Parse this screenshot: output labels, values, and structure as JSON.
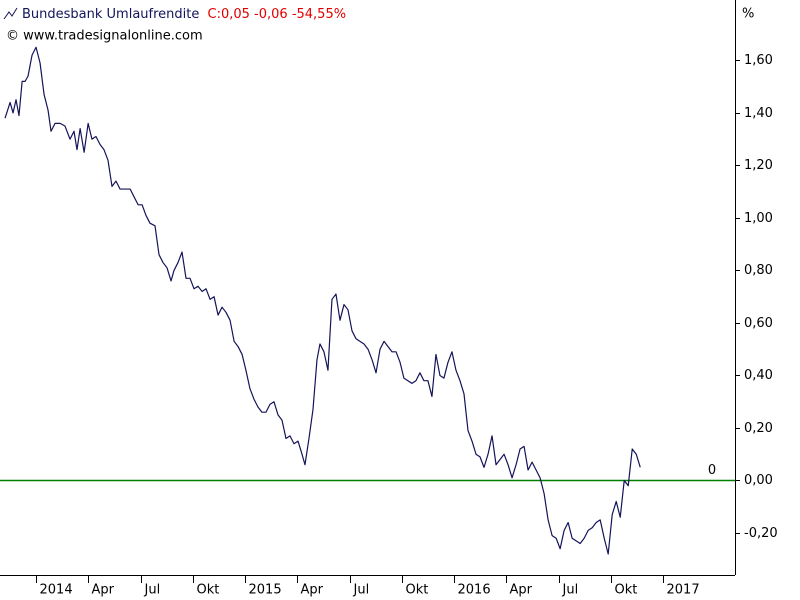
{
  "header": {
    "series_quote": "C:0,05 -0,06 -54,55%",
    "copyright": "© www.tradesignalonline.com",
    "unit": "%"
  },
  "chart_data": {
    "type": "line",
    "x": [
      -1.78,
      -1.49,
      -1.32,
      -1.15,
      -0.98,
      -0.8,
      -0.63,
      -0.46,
      -0.23,
      0,
      0.23,
      0.46,
      0.69,
      0.86,
      1.09,
      1.38,
      1.66,
      1.95,
      2.18,
      2.35,
      2.53,
      2.76,
      2.99,
      3.21,
      3.44,
      3.67,
      3.9,
      4.13,
      4.36,
      4.59,
      4.82,
      5.17,
      5.4,
      5.63,
      5.86,
      6.09,
      6.31,
      6.54,
      6.83,
      7.06,
      7.29,
      7.52,
      7.75,
      7.92,
      8.15,
      8.38,
      8.61,
      8.84,
      9.07,
      9.3,
      9.53,
      9.76,
      9.99,
      10.22,
      10.45,
      10.68,
      10.91,
      11.14,
      11.37,
      11.6,
      11.83,
      12.05,
      12.28,
      12.51,
      12.74,
      12.97,
      13.2,
      13.43,
      13.66,
      13.89,
      14.12,
      14.35,
      14.58,
      14.81,
      15.04,
      15.27,
      15.44,
      15.67,
      15.9,
      16.13,
      16.3,
      16.53,
      16.76,
      16.99,
      17.22,
      17.45,
      17.68,
      17.91,
      18.14,
      18.37,
      18.6,
      18.83,
      19.06,
      19.29,
      19.52,
      19.75,
      19.98,
      20.21,
      20.44,
      20.67,
      20.9,
      21.12,
      21.35,
      21.58,
      21.81,
      22.04,
      22.27,
      22.5,
      22.73,
      22.96,
      23.19,
      23.42,
      23.65,
      23.88,
      24.11,
      24.34,
      24.57,
      24.8,
      25.03,
      25.26,
      25.49,
      25.72,
      25.95,
      26.18,
      26.41,
      26.64,
      26.87,
      27.1,
      27.33,
      27.56,
      27.79,
      28.02,
      28.25,
      28.48,
      28.71,
      28.94,
      29.17,
      29.4,
      29.63,
      29.86,
      30.09,
      30.32,
      30.55,
      30.78,
      31.01,
      31.24,
      31.47,
      31.7,
      31.93,
      32.16,
      32.39,
      32.62,
      32.85,
      33.08,
      33.31,
      33.54,
      33.77,
      34.0,
      34.23,
      34.46,
      34.69
    ],
    "series": [
      {
        "name": "Bundesbank Umlaufrendite",
        "color": "#14145a",
        "values": [
          1.38,
          1.44,
          1.4,
          1.45,
          1.39,
          1.52,
          1.52,
          1.54,
          1.62,
          1.65,
          1.59,
          1.47,
          1.41,
          1.33,
          1.36,
          1.36,
          1.35,
          1.3,
          1.33,
          1.26,
          1.34,
          1.25,
          1.36,
          1.3,
          1.31,
          1.28,
          1.26,
          1.22,
          1.12,
          1.14,
          1.11,
          1.11,
          1.11,
          1.08,
          1.05,
          1.05,
          1.01,
          0.98,
          0.97,
          0.86,
          0.83,
          0.81,
          0.76,
          0.8,
          0.83,
          0.87,
          0.77,
          0.77,
          0.73,
          0.74,
          0.72,
          0.73,
          0.69,
          0.7,
          0.63,
          0.66,
          0.64,
          0.61,
          0.53,
          0.51,
          0.48,
          0.42,
          0.35,
          0.31,
          0.28,
          0.26,
          0.26,
          0.29,
          0.3,
          0.25,
          0.23,
          0.16,
          0.17,
          0.14,
          0.15,
          0.1,
          0.06,
          0.16,
          0.27,
          0.46,
          0.52,
          0.49,
          0.42,
          0.69,
          0.71,
          0.61,
          0.67,
          0.65,
          0.57,
          0.54,
          0.53,
          0.52,
          0.5,
          0.46,
          0.41,
          0.5,
          0.53,
          0.51,
          0.49,
          0.49,
          0.45,
          0.39,
          0.38,
          0.37,
          0.38,
          0.41,
          0.38,
          0.38,
          0.32,
          0.48,
          0.4,
          0.39,
          0.45,
          0.49,
          0.42,
          0.38,
          0.33,
          0.19,
          0.15,
          0.1,
          0.09,
          0.05,
          0.1,
          0.17,
          0.06,
          0.08,
          0.1,
          0.06,
          0.01,
          0.06,
          0.12,
          0.13,
          0.04,
          0.07,
          0.04,
          0.01,
          -0.05,
          -0.15,
          -0.21,
          -0.22,
          -0.26,
          -0.19,
          -0.16,
          -0.22,
          -0.23,
          -0.24,
          -0.22,
          -0.19,
          -0.18,
          -0.16,
          -0.15,
          -0.22,
          -0.28,
          -0.13,
          -0.08,
          -0.14,
          0.0,
          -0.02,
          0.12,
          0.1,
          0.05
        ]
      }
    ],
    "xlim": [
      -2.07,
      40.13
    ],
    "xticks": [
      {
        "value": 0,
        "label": "2014"
      },
      {
        "value": 3,
        "label": "Apr"
      },
      {
        "value": 6,
        "label": "Jul"
      },
      {
        "value": 9,
        "label": "Okt"
      },
      {
        "value": 12,
        "label": "2015"
      },
      {
        "value": 15,
        "label": "Apr"
      },
      {
        "value": 18,
        "label": "Jul"
      },
      {
        "value": 21,
        "label": "Okt"
      },
      {
        "value": 24,
        "label": "2016"
      },
      {
        "value": 27,
        "label": "Apr"
      },
      {
        "value": 30,
        "label": "Jul"
      },
      {
        "value": 33,
        "label": "Okt"
      },
      {
        "value": 36,
        "label": "2017"
      }
    ],
    "ylim": [
      -0.36,
      1.83
    ],
    "yticks": [
      {
        "value": -0.2,
        "label": "-0,20"
      },
      {
        "value": 0,
        "label": "0,00"
      },
      {
        "value": 0.2,
        "label": "0,20"
      },
      {
        "value": 0.4,
        "label": "0,40"
      },
      {
        "value": 0.6,
        "label": "0,60"
      },
      {
        "value": 0.8,
        "label": "0,80"
      },
      {
        "value": 1.0,
        "label": "1,00"
      },
      {
        "value": 1.2,
        "label": "1,20"
      },
      {
        "value": 1.4,
        "label": "1,40"
      },
      {
        "value": 1.6,
        "label": "1,60"
      }
    ],
    "hline": {
      "value": 0,
      "color": "#008000"
    }
  }
}
